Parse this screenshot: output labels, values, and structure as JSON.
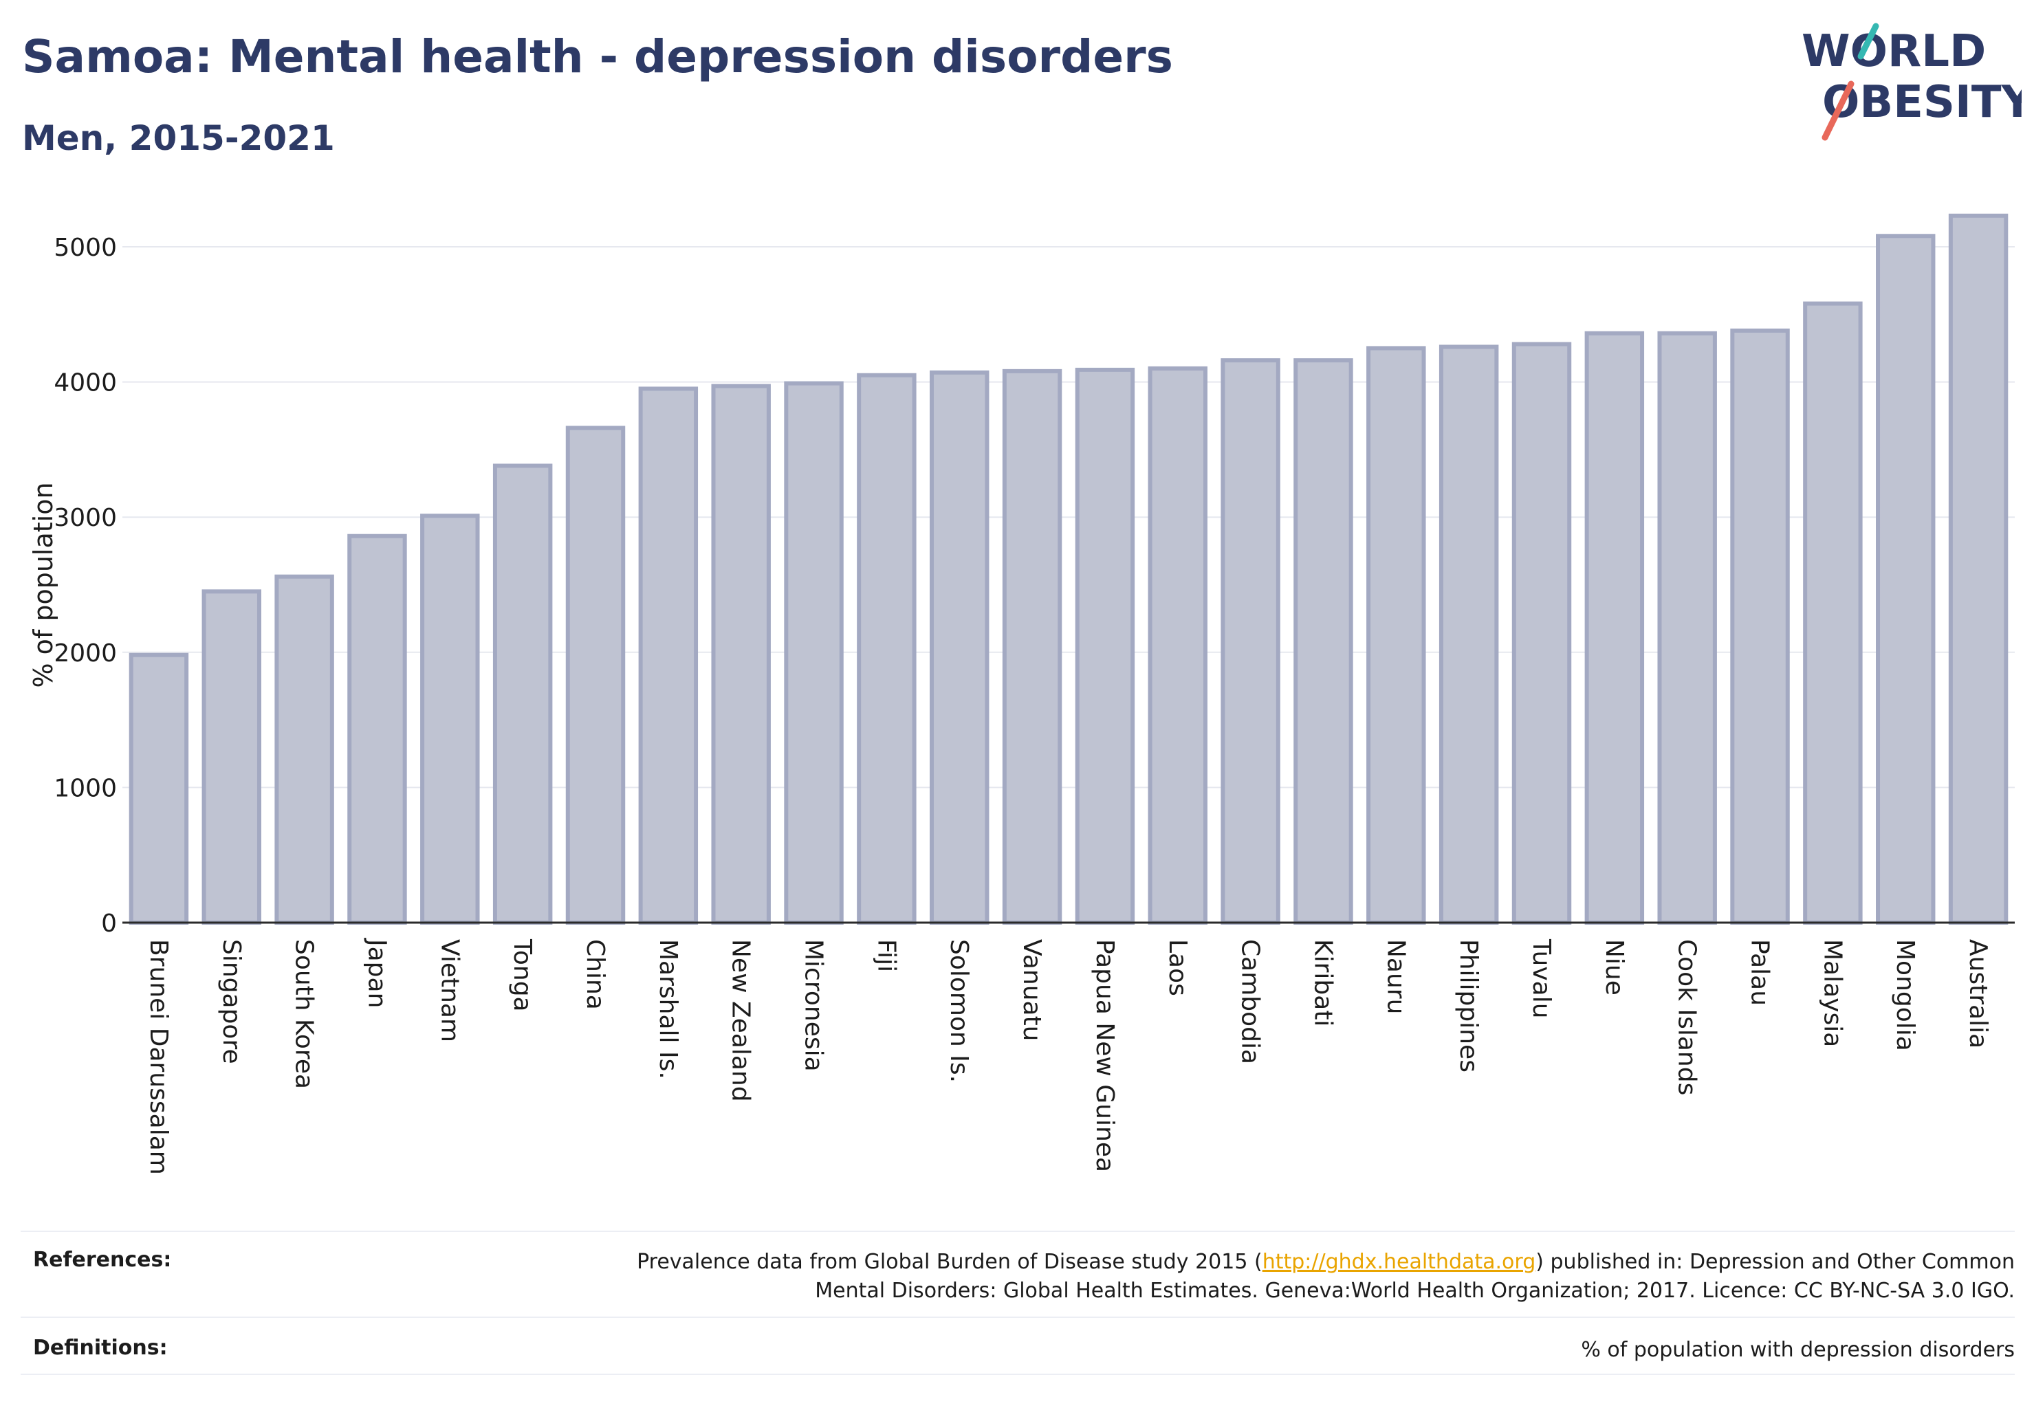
{
  "header": {
    "title": "Samoa: Mental health - depression disorders",
    "subtitle": "Men, 2015-2021"
  },
  "logo": {
    "line1": "WORLD",
    "line2": "OBESITY",
    "colors": {
      "text": "#2d3a66",
      "slash_teal": "#35b8b2",
      "slash_coral": "#e8685a"
    }
  },
  "chart_data": {
    "type": "bar",
    "title": "Samoa: Mental health - depression disorders",
    "subtitle": "Men, 2015-2021",
    "xlabel": "",
    "ylabel": "% of population",
    "ylim": [
      0,
      5300
    ],
    "yticks": [
      0,
      1000,
      2000,
      3000,
      4000,
      5000
    ],
    "grid": true,
    "bar_color": "#bfc3d2",
    "bar_edge_color": "#a3a9c2",
    "categories": [
      "Brunei Darussalam",
      "Singapore",
      "South Korea",
      "Japan",
      "Vietnam",
      "Tonga",
      "China",
      "Marshall Is.",
      "New Zealand",
      "Micronesia",
      "Fiji",
      "Solomon Is.",
      "Vanuatu",
      "Papua New Guinea",
      "Laos",
      "Cambodia",
      "Kiribati",
      "Nauru",
      "Philippines",
      "Tuvalu",
      "Niue",
      "Cook Islands",
      "Palau",
      "Malaysia",
      "Mongolia",
      "Australia"
    ],
    "values": [
      1980,
      2450,
      2560,
      2860,
      3010,
      3380,
      3660,
      3950,
      3970,
      3990,
      4050,
      4070,
      4080,
      4090,
      4100,
      4160,
      4160,
      4250,
      4260,
      4280,
      4360,
      4360,
      4380,
      4580,
      5080,
      5230
    ]
  },
  "references": {
    "label": "References:",
    "text_before": "Prevalence data from Global Burden of Disease study 2015 (",
    "link": "http://ghdx.healthdata.org",
    "text_after": ") published in: Depression and Other Common",
    "line2": "Mental Disorders: Global Health Estimates. Geneva:World Health Organization; 2017. Licence: CC BY-NC-SA 3.0 IGO."
  },
  "definitions": {
    "label": "Definitions:",
    "text": "% of population with depression disorders"
  }
}
